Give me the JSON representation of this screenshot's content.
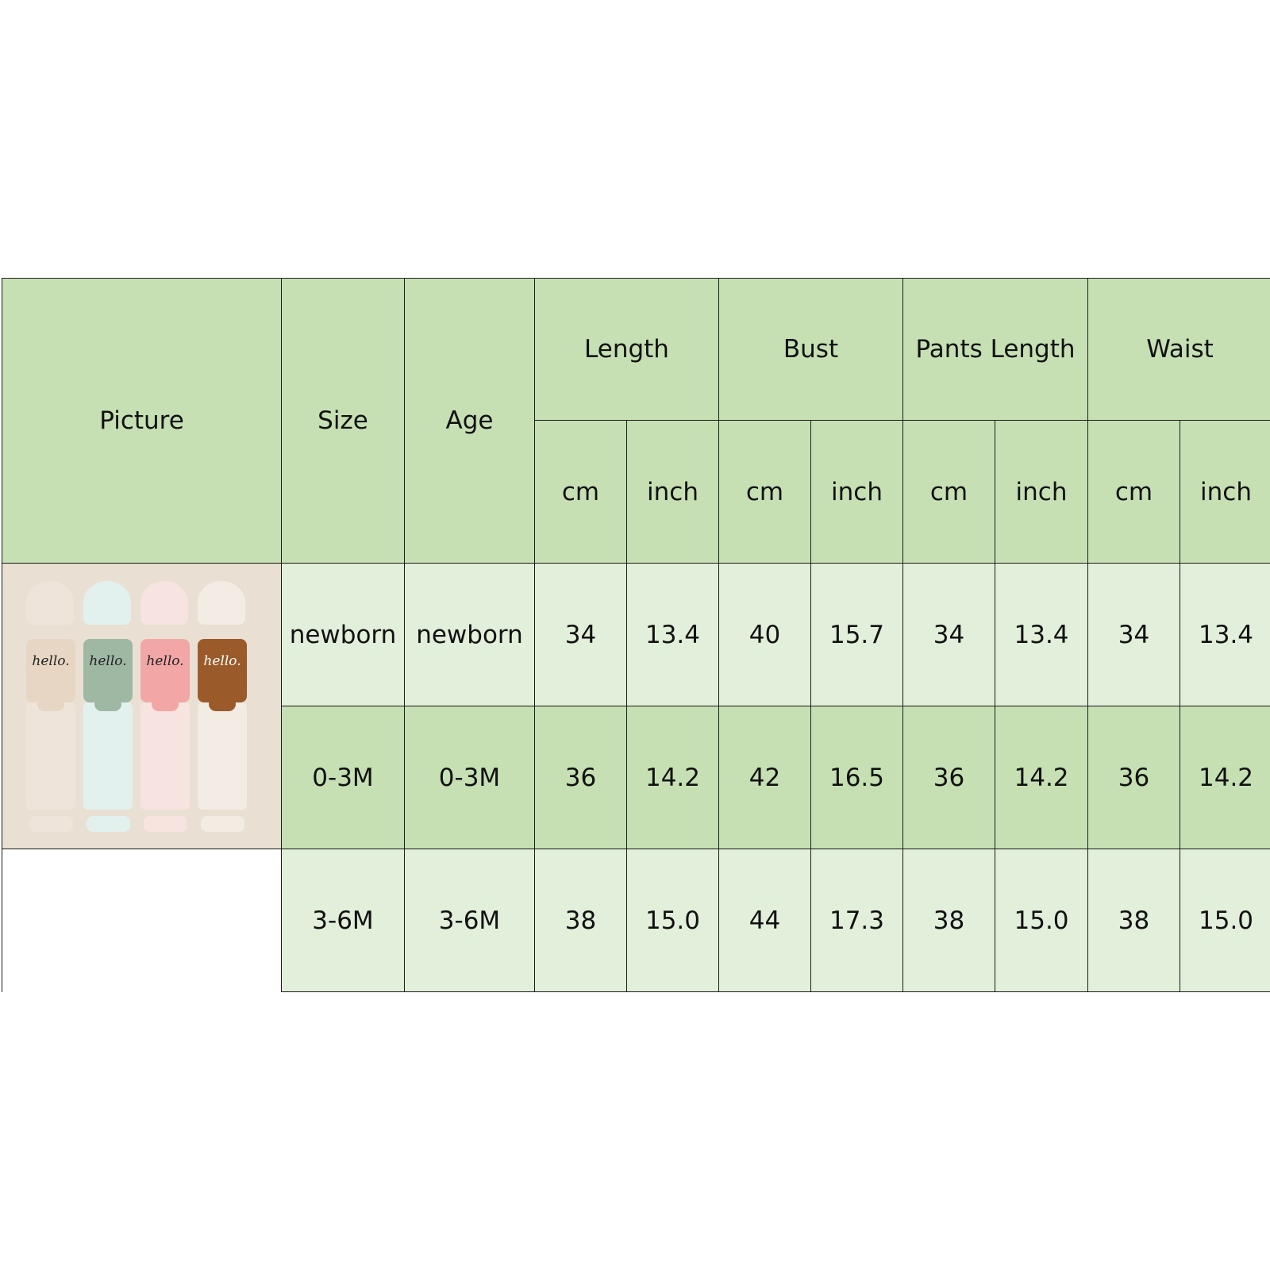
{
  "header": {
    "picture": "Picture",
    "size": "Size",
    "age": "Age",
    "groups": [
      "Length",
      "Bust",
      "Pants Length",
      "Waist"
    ],
    "units": [
      "cm",
      "inch",
      "cm",
      "inch",
      "cm",
      "inch",
      "cm",
      "inch"
    ]
  },
  "rows": [
    {
      "size": "newborn",
      "age": "newborn",
      "values": [
        "34",
        "13.4",
        "40",
        "15.7",
        "34",
        "13.4",
        "34",
        "13.4"
      ]
    },
    {
      "size": "0-3M",
      "age": "0-3M",
      "values": [
        "36",
        "14.2",
        "42",
        "16.5",
        "36",
        "14.2",
        "36",
        "14.2"
      ]
    },
    {
      "size": "3-6M",
      "age": "3-6M",
      "values": [
        "38",
        "15.0",
        "44",
        "17.3",
        "38",
        "15.0",
        "38",
        "15.0"
      ]
    }
  ],
  "picture": {
    "shirt_text": "hello.",
    "outfit_colors": [
      "#e6d6c3",
      "#9fb8a4",
      "#f2a7a6",
      "#9a5a2a"
    ]
  },
  "colors": {
    "header": "#c6e0b4",
    "row_light": "#e2efda",
    "row_dark": "#c6e0b4"
  }
}
